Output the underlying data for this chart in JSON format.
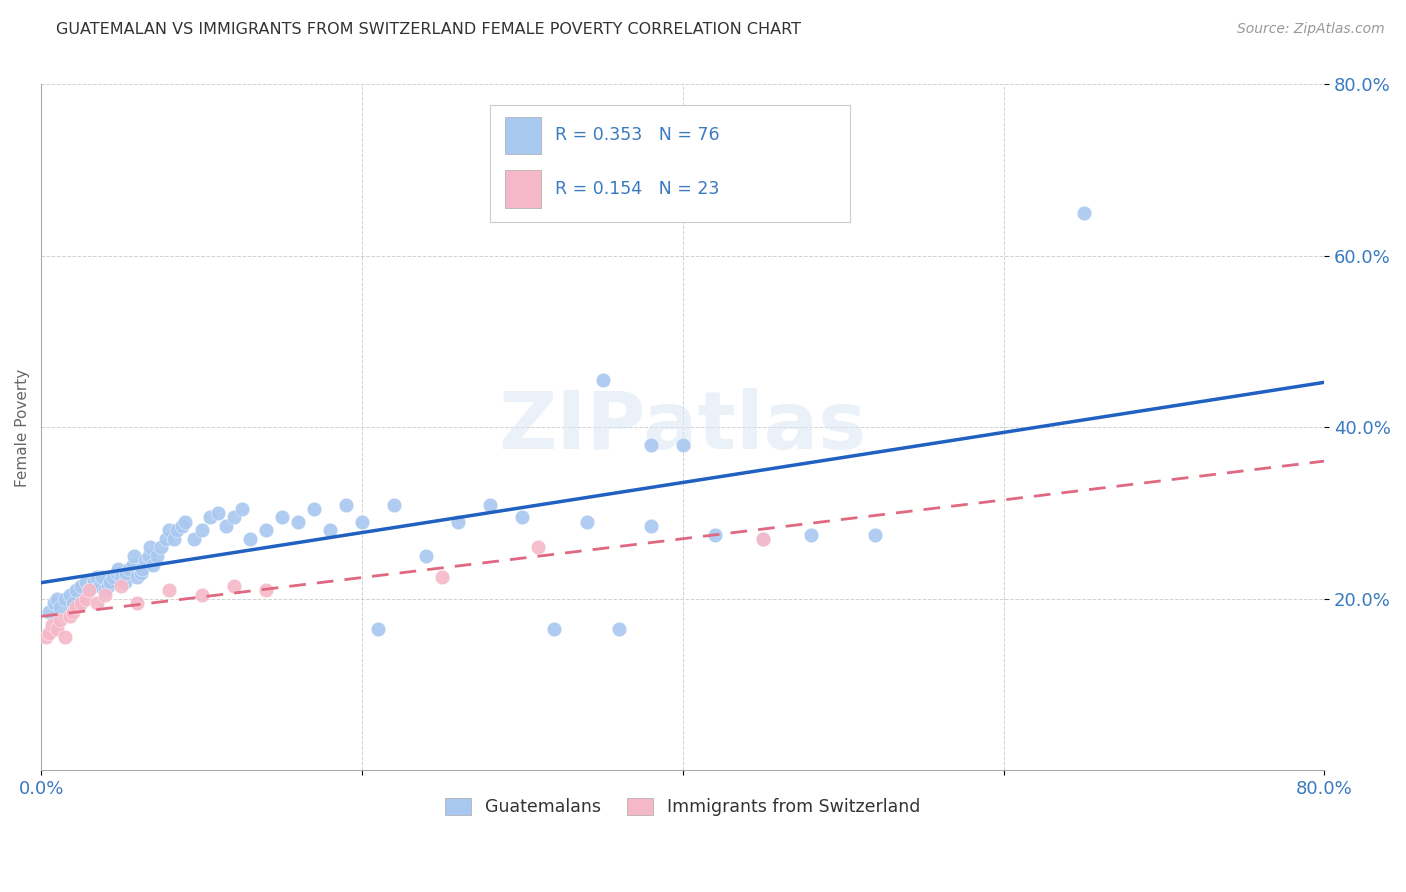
{
  "title": "GUATEMALAN VS IMMIGRANTS FROM SWITZERLAND FEMALE POVERTY CORRELATION CHART",
  "source": "Source: ZipAtlas.com",
  "ylabel": "Female Poverty",
  "xlim": [
    0.0,
    0.8
  ],
  "ylim": [
    0.0,
    0.8
  ],
  "xticks": [
    0.0,
    0.2,
    0.4,
    0.6,
    0.8
  ],
  "yticks": [
    0.2,
    0.4,
    0.6,
    0.8
  ],
  "xticklabels": [
    "0.0%",
    "",
    "",
    "",
    "80.0%"
  ],
  "yticklabels": [
    "20.0%",
    "40.0%",
    "60.0%",
    "80.0%"
  ],
  "blue_color": "#a8c8f0",
  "pink_color": "#f5b8c8",
  "blue_line_color": "#2060c0",
  "pink_line_color": "#e06880",
  "r_blue": 0.353,
  "n_blue": 76,
  "r_pink": 0.154,
  "n_pink": 23,
  "legend1_label": "Guatemalans",
  "legend2_label": "Immigrants from Switzerland",
  "watermark": "ZIPatlas",
  "guatemalans_x": [
    0.005,
    0.008,
    0.01,
    0.012,
    0.015,
    0.018,
    0.02,
    0.022,
    0.025,
    0.028,
    0.03,
    0.032,
    0.033,
    0.035,
    0.037,
    0.038,
    0.04,
    0.042,
    0.043,
    0.045,
    0.047,
    0.048,
    0.05,
    0.052,
    0.053,
    0.055,
    0.057,
    0.058,
    0.06,
    0.062,
    0.063,
    0.065,
    0.067,
    0.068,
    0.07,
    0.072,
    0.075,
    0.078,
    0.08,
    0.083,
    0.085,
    0.088,
    0.09,
    0.095,
    0.1,
    0.105,
    0.11,
    0.115,
    0.12,
    0.125,
    0.13,
    0.14,
    0.15,
    0.16,
    0.17,
    0.18,
    0.19,
    0.2,
    0.21,
    0.22,
    0.24,
    0.26,
    0.28,
    0.3,
    0.32,
    0.34,
    0.36,
    0.38,
    0.4,
    0.42,
    0.45,
    0.48,
    0.35,
    0.38,
    0.52,
    0.65
  ],
  "guatemalans_y": [
    0.185,
    0.195,
    0.2,
    0.19,
    0.2,
    0.205,
    0.195,
    0.21,
    0.215,
    0.22,
    0.21,
    0.215,
    0.22,
    0.225,
    0.215,
    0.225,
    0.21,
    0.215,
    0.22,
    0.225,
    0.23,
    0.235,
    0.225,
    0.22,
    0.23,
    0.235,
    0.24,
    0.25,
    0.225,
    0.23,
    0.235,
    0.245,
    0.25,
    0.26,
    0.24,
    0.25,
    0.26,
    0.27,
    0.28,
    0.27,
    0.28,
    0.285,
    0.29,
    0.27,
    0.28,
    0.295,
    0.3,
    0.285,
    0.295,
    0.305,
    0.27,
    0.28,
    0.295,
    0.29,
    0.305,
    0.28,
    0.31,
    0.29,
    0.165,
    0.31,
    0.25,
    0.29,
    0.31,
    0.295,
    0.165,
    0.29,
    0.165,
    0.285,
    0.38,
    0.275,
    0.27,
    0.275,
    0.455,
    0.38,
    0.275,
    0.65
  ],
  "swiss_x": [
    0.003,
    0.005,
    0.007,
    0.01,
    0.012,
    0.015,
    0.018,
    0.02,
    0.022,
    0.025,
    0.028,
    0.03,
    0.035,
    0.04,
    0.05,
    0.06,
    0.08,
    0.1,
    0.12,
    0.14,
    0.25,
    0.31,
    0.45
  ],
  "swiss_y": [
    0.155,
    0.16,
    0.17,
    0.165,
    0.175,
    0.155,
    0.18,
    0.185,
    0.19,
    0.195,
    0.2,
    0.21,
    0.195,
    0.205,
    0.215,
    0.195,
    0.21,
    0.205,
    0.215,
    0.21,
    0.225,
    0.26,
    0.27
  ]
}
